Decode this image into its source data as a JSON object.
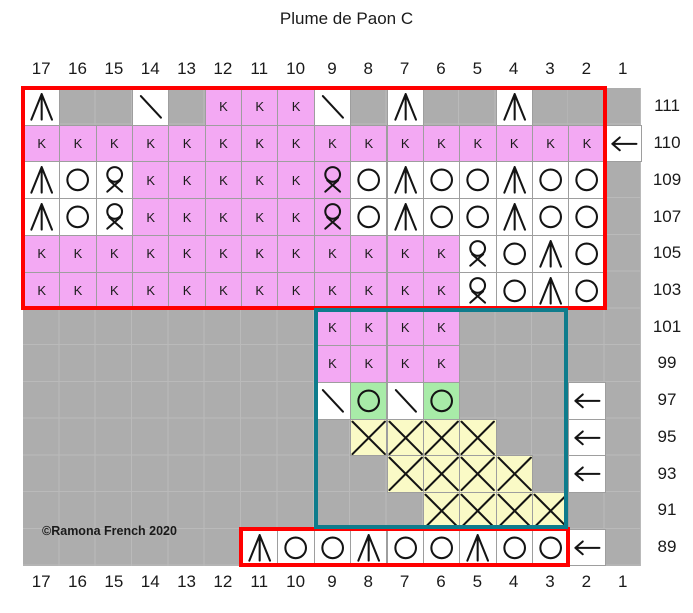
{
  "title": "Plume de Paon C",
  "copyright": "©Ramona French 2020",
  "columns": [
    "17",
    "16",
    "15",
    "14",
    "13",
    "12",
    "11",
    "10",
    "9",
    "8",
    "7",
    "6",
    "5",
    "4",
    "3",
    "2",
    "1"
  ],
  "colors": {
    "background_gray": "#ADADAD",
    "gridline_gray": "#BABABA",
    "pink": "#F3A9F3",
    "green": "#A8EBA8",
    "yellow": "#FAFAC6",
    "white": "#FFFFFF",
    "red_outline": "#FF0000",
    "teal_outline": "#0E7C8C",
    "symbol_black": "#141414"
  },
  "legend": {
    "k": "knit-letter-K",
    "cdd": "centered-double-decrease-icon",
    "ssk": "right-leaning-decrease-icon",
    "yo": "yarn-over-circle-icon",
    "ktbl": "knit-through-back-loop-icon",
    "cable": "cable-cross-icon",
    "arrow": "left-arrow-icon"
  },
  "rows": [
    {
      "label": "111",
      "cells": [
        {
          "c": 17,
          "bg": "white",
          "s": "cdd"
        },
        {
          "c": 14,
          "bg": "white",
          "s": "ssk"
        },
        {
          "c": 12,
          "bg": "pink",
          "s": "k"
        },
        {
          "c": 11,
          "bg": "pink",
          "s": "k"
        },
        {
          "c": 10,
          "bg": "pink",
          "s": "k"
        },
        {
          "c": 9,
          "bg": "white",
          "s": "ssk"
        },
        {
          "c": 7,
          "bg": "white",
          "s": "cdd"
        },
        {
          "c": 4,
          "bg": "white",
          "s": "cdd"
        }
      ]
    },
    {
      "label": "110",
      "cells": [
        {
          "c": 17,
          "bg": "pink",
          "s": "k"
        },
        {
          "c": 16,
          "bg": "pink",
          "s": "k"
        },
        {
          "c": 15,
          "bg": "pink",
          "s": "k"
        },
        {
          "c": 14,
          "bg": "pink",
          "s": "k"
        },
        {
          "c": 13,
          "bg": "pink",
          "s": "k"
        },
        {
          "c": 12,
          "bg": "pink",
          "s": "k"
        },
        {
          "c": 11,
          "bg": "pink",
          "s": "k"
        },
        {
          "c": 10,
          "bg": "pink",
          "s": "k"
        },
        {
          "c": 9,
          "bg": "pink",
          "s": "k"
        },
        {
          "c": 8,
          "bg": "pink",
          "s": "k"
        },
        {
          "c": 7,
          "bg": "pink",
          "s": "k"
        },
        {
          "c": 6,
          "bg": "pink",
          "s": "k"
        },
        {
          "c": 5,
          "bg": "pink",
          "s": "k"
        },
        {
          "c": 4,
          "bg": "pink",
          "s": "k"
        },
        {
          "c": 3,
          "bg": "pink",
          "s": "k"
        },
        {
          "c": 2,
          "bg": "pink",
          "s": "k"
        }
      ]
    },
    {
      "label": "109",
      "cells": [
        {
          "c": 17,
          "bg": "white",
          "s": "cdd"
        },
        {
          "c": 16,
          "bg": "white",
          "s": "yo"
        },
        {
          "c": 15,
          "bg": "white",
          "s": "ktbl"
        },
        {
          "c": 14,
          "bg": "pink",
          "s": "k"
        },
        {
          "c": 13,
          "bg": "pink",
          "s": "k"
        },
        {
          "c": 12,
          "bg": "pink",
          "s": "k"
        },
        {
          "c": 11,
          "bg": "pink",
          "s": "k"
        },
        {
          "c": 10,
          "bg": "pink",
          "s": "k"
        },
        {
          "c": 9,
          "bg": "pink",
          "s": "ktbl"
        },
        {
          "c": 8,
          "bg": "white",
          "s": "yo"
        },
        {
          "c": 7,
          "bg": "white",
          "s": "cdd"
        },
        {
          "c": 6,
          "bg": "white",
          "s": "yo"
        },
        {
          "c": 5,
          "bg": "white",
          "s": "yo"
        },
        {
          "c": 4,
          "bg": "white",
          "s": "cdd"
        },
        {
          "c": 3,
          "bg": "white",
          "s": "yo"
        },
        {
          "c": 2,
          "bg": "white",
          "s": "yo"
        }
      ]
    },
    {
      "label": "107",
      "cells": [
        {
          "c": 17,
          "bg": "white",
          "s": "cdd"
        },
        {
          "c": 16,
          "bg": "white",
          "s": "yo"
        },
        {
          "c": 15,
          "bg": "white",
          "s": "ktbl"
        },
        {
          "c": 14,
          "bg": "pink",
          "s": "k"
        },
        {
          "c": 13,
          "bg": "pink",
          "s": "k"
        },
        {
          "c": 12,
          "bg": "pink",
          "s": "k"
        },
        {
          "c": 11,
          "bg": "pink",
          "s": "k"
        },
        {
          "c": 10,
          "bg": "pink",
          "s": "k"
        },
        {
          "c": 9,
          "bg": "pink",
          "s": "ktbl"
        },
        {
          "c": 8,
          "bg": "white",
          "s": "yo"
        },
        {
          "c": 7,
          "bg": "white",
          "s": "cdd"
        },
        {
          "c": 6,
          "bg": "white",
          "s": "yo"
        },
        {
          "c": 5,
          "bg": "white",
          "s": "yo"
        },
        {
          "c": 4,
          "bg": "white",
          "s": "cdd"
        },
        {
          "c": 3,
          "bg": "white",
          "s": "yo"
        },
        {
          "c": 2,
          "bg": "white",
          "s": "yo"
        }
      ]
    },
    {
      "label": "105",
      "cells": [
        {
          "c": 17,
          "bg": "pink",
          "s": "k"
        },
        {
          "c": 16,
          "bg": "pink",
          "s": "k"
        },
        {
          "c": 15,
          "bg": "pink",
          "s": "k"
        },
        {
          "c": 14,
          "bg": "pink",
          "s": "k"
        },
        {
          "c": 13,
          "bg": "pink",
          "s": "k"
        },
        {
          "c": 12,
          "bg": "pink",
          "s": "k"
        },
        {
          "c": 11,
          "bg": "pink",
          "s": "k"
        },
        {
          "c": 10,
          "bg": "pink",
          "s": "k"
        },
        {
          "c": 9,
          "bg": "pink",
          "s": "k"
        },
        {
          "c": 8,
          "bg": "pink",
          "s": "k"
        },
        {
          "c": 7,
          "bg": "pink",
          "s": "k"
        },
        {
          "c": 6,
          "bg": "pink",
          "s": "k"
        },
        {
          "c": 5,
          "bg": "white",
          "s": "ktbl"
        },
        {
          "c": 4,
          "bg": "white",
          "s": "yo"
        },
        {
          "c": 3,
          "bg": "white",
          "s": "cdd"
        },
        {
          "c": 2,
          "bg": "white",
          "s": "yo"
        }
      ]
    },
    {
      "label": "103",
      "cells": [
        {
          "c": 17,
          "bg": "pink",
          "s": "k"
        },
        {
          "c": 16,
          "bg": "pink",
          "s": "k"
        },
        {
          "c": 15,
          "bg": "pink",
          "s": "k"
        },
        {
          "c": 14,
          "bg": "pink",
          "s": "k"
        },
        {
          "c": 13,
          "bg": "pink",
          "s": "k"
        },
        {
          "c": 12,
          "bg": "pink",
          "s": "k"
        },
        {
          "c": 11,
          "bg": "pink",
          "s": "k"
        },
        {
          "c": 10,
          "bg": "pink",
          "s": "k"
        },
        {
          "c": 9,
          "bg": "pink",
          "s": "k"
        },
        {
          "c": 8,
          "bg": "pink",
          "s": "k"
        },
        {
          "c": 7,
          "bg": "pink",
          "s": "k"
        },
        {
          "c": 6,
          "bg": "pink",
          "s": "k"
        },
        {
          "c": 5,
          "bg": "white",
          "s": "ktbl"
        },
        {
          "c": 4,
          "bg": "white",
          "s": "yo"
        },
        {
          "c": 3,
          "bg": "white",
          "s": "cdd"
        },
        {
          "c": 2,
          "bg": "white",
          "s": "yo"
        }
      ]
    },
    {
      "label": "101",
      "cells": [
        {
          "c": 9,
          "bg": "pink",
          "s": "k"
        },
        {
          "c": 8,
          "bg": "pink",
          "s": "k"
        },
        {
          "c": 7,
          "bg": "pink",
          "s": "k"
        },
        {
          "c": 6,
          "bg": "pink",
          "s": "k"
        }
      ]
    },
    {
      "label": "99",
      "cells": [
        {
          "c": 9,
          "bg": "pink",
          "s": "k"
        },
        {
          "c": 8,
          "bg": "pink",
          "s": "k"
        },
        {
          "c": 7,
          "bg": "pink",
          "s": "k"
        },
        {
          "c": 6,
          "bg": "pink",
          "s": "k"
        }
      ]
    },
    {
      "label": "97",
      "cells": [
        {
          "c": 9,
          "bg": "white",
          "s": "ssk"
        },
        {
          "c": 8,
          "bg": "green",
          "s": "yo"
        },
        {
          "c": 7,
          "bg": "white",
          "s": "ssk"
        },
        {
          "c": 6,
          "bg": "green",
          "s": "yo"
        }
      ]
    },
    {
      "label": "95",
      "cells": [
        {
          "c": 8,
          "bg": "yellow",
          "s": "cable"
        },
        {
          "c": 7,
          "bg": "yellow",
          "s": "cable"
        },
        {
          "c": 6,
          "bg": "yellow",
          "s": "cable"
        },
        {
          "c": 5,
          "bg": "yellow",
          "s": "cable"
        }
      ]
    },
    {
      "label": "93",
      "cells": [
        {
          "c": 7,
          "bg": "yellow",
          "s": "cable"
        },
        {
          "c": 6,
          "bg": "yellow",
          "s": "cable"
        },
        {
          "c": 5,
          "bg": "yellow",
          "s": "cable"
        },
        {
          "c": 4,
          "bg": "yellow",
          "s": "cable"
        }
      ]
    },
    {
      "label": "91",
      "cells": [
        {
          "c": 6,
          "bg": "yellow",
          "s": "cable"
        },
        {
          "c": 5,
          "bg": "yellow",
          "s": "cable"
        },
        {
          "c": 4,
          "bg": "yellow",
          "s": "cable"
        },
        {
          "c": 3,
          "bg": "yellow",
          "s": "cable"
        }
      ]
    },
    {
      "label": "89",
      "cells": [
        {
          "c": 11,
          "bg": "white",
          "s": "cdd"
        },
        {
          "c": 10,
          "bg": "white",
          "s": "yo"
        },
        {
          "c": 9,
          "bg": "white",
          "s": "yo"
        },
        {
          "c": 8,
          "bg": "white",
          "s": "cdd"
        },
        {
          "c": 7,
          "bg": "white",
          "s": "yo"
        },
        {
          "c": 6,
          "bg": "white",
          "s": "yo"
        },
        {
          "c": 5,
          "bg": "white",
          "s": "cdd"
        },
        {
          "c": 4,
          "bg": "white",
          "s": "yo"
        },
        {
          "c": 3,
          "bg": "white",
          "s": "yo"
        }
      ]
    }
  ],
  "arrows": [
    {
      "row": "110",
      "col": 1
    },
    {
      "row": "97",
      "col": 2
    },
    {
      "row": "95",
      "col": 2
    },
    {
      "row": "93",
      "col": 2
    },
    {
      "row": "89",
      "col": 2
    }
  ],
  "outlines": [
    {
      "name": "red-outline-top",
      "color": "#FF0000",
      "col_from": 17,
      "col_to": 2,
      "row_from": "111",
      "row_to": "103"
    },
    {
      "name": "red-outline-bottom",
      "color": "#FF0000",
      "col_from": 11,
      "col_to": 3,
      "row_from": "89",
      "row_to": "89"
    },
    {
      "name": "teal-outline",
      "color": "#0E7C8C",
      "col_from": 9,
      "col_to": 3,
      "row_from": "101",
      "row_to": "91"
    }
  ]
}
